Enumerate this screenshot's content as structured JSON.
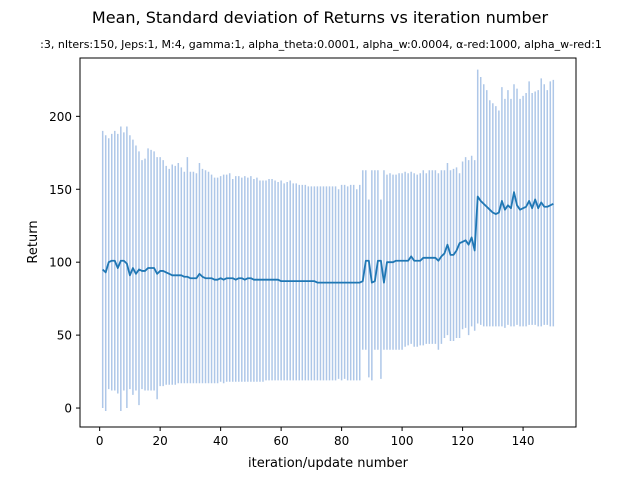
{
  "chart_data": {
    "type": "line",
    "title": "Mean, Standard deviation of Returns vs iteration number",
    "subtitle": ":3, nIters:150, Jeps:1, M:4, gamma:1, alpha_theta:0.0001, alpha_w:0.0004, α-red:1000, alpha_w-red:1",
    "xlabel": "iteration/update number",
    "ylabel": "Return",
    "xlim": [
      -6.5,
      157.5
    ],
    "ylim": [
      -13,
      240
    ],
    "x_ticks": [
      0,
      20,
      40,
      60,
      80,
      100,
      120,
      140
    ],
    "y_ticks": [
      0,
      50,
      100,
      150,
      200
    ],
    "x_tick_labels": [
      "0",
      "20",
      "40",
      "60",
      "80",
      "100",
      "120",
      "140"
    ],
    "y_tick_labels": [
      "0",
      "50",
      "100",
      "150",
      "200"
    ],
    "line_color": "#1f77b4",
    "errorbar_color": "#aec7e8",
    "series": [
      {
        "x": [
          1,
          2,
          3,
          4,
          5,
          6,
          7,
          8,
          9,
          10,
          11,
          12,
          13,
          14,
          15,
          16,
          17,
          18,
          19,
          20,
          21,
          22,
          23,
          24,
          25,
          26,
          27,
          28,
          29,
          30,
          31,
          32,
          33,
          34,
          35,
          36,
          37,
          38,
          39,
          40,
          41,
          42,
          43,
          44,
          45,
          46,
          47,
          48,
          49,
          50,
          51,
          52,
          53,
          54,
          55,
          56,
          57,
          58,
          59,
          60,
          61,
          62,
          63,
          64,
          65,
          66,
          67,
          68,
          69,
          70,
          71,
          72,
          73,
          74,
          75,
          76,
          77,
          78,
          79,
          80,
          81,
          82,
          83,
          84,
          85,
          86,
          87,
          88,
          89,
          90,
          91,
          92,
          93,
          94,
          95,
          96,
          97,
          98,
          99,
          100,
          101,
          102,
          103,
          104,
          105,
          106,
          107,
          108,
          109,
          110,
          111,
          112,
          113,
          114,
          115,
          116,
          117,
          118,
          119,
          120,
          121,
          122,
          123,
          124,
          125,
          126,
          127,
          128,
          129,
          130,
          131,
          132,
          133,
          134,
          135,
          136,
          137,
          138,
          139,
          140,
          141,
          142,
          143,
          144,
          145,
          146,
          147,
          148,
          149,
          150
        ],
        "mean": [
          95,
          93,
          100,
          101,
          101,
          96,
          101,
          101,
          99,
          91,
          96,
          92,
          95,
          94,
          94,
          96,
          96,
          96,
          92,
          94,
          94,
          93,
          92,
          91,
          91,
          91,
          91,
          90,
          90,
          89,
          89,
          89,
          92,
          90,
          89,
          89,
          89,
          88,
          88,
          89,
          88,
          89,
          89,
          89,
          88,
          89,
          89,
          88,
          89,
          89,
          88,
          88,
          88,
          88,
          88,
          88,
          88,
          88,
          88,
          87,
          87,
          87,
          87,
          87,
          87,
          87,
          87,
          87,
          87,
          87,
          87,
          86,
          86,
          86,
          86,
          86,
          86,
          86,
          86,
          86,
          86,
          86,
          86,
          86,
          86,
          86,
          87,
          101,
          101,
          86,
          87,
          101,
          101,
          86,
          100,
          100,
          100,
          101,
          101,
          101,
          101,
          101,
          104,
          101,
          101,
          101,
          103,
          103,
          103,
          103,
          103,
          101,
          104,
          106,
          112,
          105,
          105,
          108,
          113,
          114,
          115,
          112,
          117,
          108,
          145,
          142,
          140,
          138,
          136,
          134,
          133,
          134,
          142,
          136,
          139,
          137,
          148,
          139,
          136,
          137,
          138,
          142,
          137,
          143,
          137,
          141,
          138,
          138,
          139,
          140
        ],
        "upper": [
          190,
          187,
          185,
          188,
          190,
          188,
          193,
          189,
          193,
          187,
          184,
          180,
          176,
          170,
          171,
          178,
          177,
          176,
          172,
          172,
          170,
          166,
          164,
          167,
          166,
          168,
          165,
          162,
          172,
          162,
          162,
          161,
          168,
          164,
          163,
          162,
          160,
          158,
          158,
          159,
          160,
          160,
          161,
          157,
          159,
          159,
          158,
          159,
          158,
          159,
          157,
          158,
          156,
          156,
          156,
          157,
          157,
          156,
          155,
          156,
          154,
          155,
          156,
          154,
          154,
          153,
          153,
          153,
          152,
          152,
          152,
          152,
          152,
          152,
          152,
          152,
          152,
          152,
          150,
          153,
          153,
          152,
          153,
          153,
          150,
          153,
          163,
          163,
          143,
          163,
          163,
          163,
          143,
          163,
          160,
          161,
          160,
          160,
          161,
          161,
          162,
          161,
          162,
          161,
          160,
          161,
          163,
          161,
          163,
          163,
          163,
          161,
          163,
          163,
          168,
          163,
          164,
          165,
          161,
          169,
          172,
          170,
          173,
          170,
          232,
          227,
          222,
          218,
          211,
          209,
          207,
          204,
          220,
          212,
          218,
          212,
          222,
          219,
          212,
          214,
          216,
          224,
          216,
          217,
          218,
          226,
          222,
          218,
          224,
          225
        ],
        "lower": [
          0,
          -2,
          13,
          12,
          12,
          10,
          -2,
          12,
          0,
          13,
          9,
          12,
          2,
          13,
          12,
          12,
          12,
          12,
          6,
          15,
          15,
          16,
          16,
          16,
          16,
          17,
          17,
          17,
          17,
          17,
          17,
          17,
          17,
          17,
          17,
          17,
          17,
          17,
          17,
          18,
          17,
          18,
          18,
          18,
          18,
          18,
          18,
          18,
          18,
          18,
          18,
          18,
          18,
          18,
          19,
          19,
          19,
          19,
          19,
          19,
          19,
          19,
          19,
          19,
          19,
          19,
          19,
          19,
          19,
          19,
          19,
          19,
          19,
          19,
          19,
          19,
          19,
          19,
          20,
          19,
          20,
          19,
          19,
          19,
          19,
          19,
          40,
          40,
          21,
          19,
          40,
          40,
          20,
          40,
          40,
          40,
          40,
          40,
          40,
          40,
          42,
          43,
          44,
          42,
          42,
          43,
          43,
          44,
          44,
          44,
          44,
          40,
          44,
          48,
          50,
          46,
          46,
          48,
          48,
          54,
          55,
          50,
          56,
          53,
          58,
          57,
          56,
          56,
          56,
          56,
          56,
          56,
          56,
          55,
          57,
          56,
          56,
          57,
          56,
          56,
          56,
          57,
          57,
          57,
          56,
          56,
          57,
          57,
          56,
          56
        ]
      }
    ]
  }
}
